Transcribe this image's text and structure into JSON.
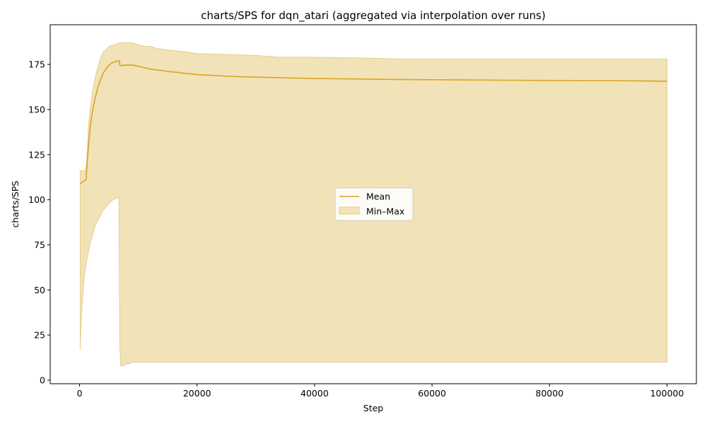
{
  "chart_data": {
    "type": "area",
    "title": "charts/SPS for dqn_atari (aggregated via interpolation over runs)",
    "xlabel": "Step",
    "ylabel": "charts/SPS",
    "xlim": [
      -5000,
      105000
    ],
    "ylim": [
      -2,
      197
    ],
    "xticks": [
      0,
      20000,
      40000,
      60000,
      80000,
      100000
    ],
    "yticks": [
      0,
      25,
      50,
      75,
      100,
      125,
      150,
      175
    ],
    "grid": false,
    "legend_position": "center",
    "colors": {
      "mean_line": "#DAA520",
      "band_fill": "#F1E2B8",
      "band_edge": "#E6CF8C"
    },
    "series": [
      {
        "name": "Mean",
        "kind": "line",
        "x": [
          100,
          600,
          1100,
          1400,
          1700,
          2000,
          2300,
          2700,
          3000,
          3500,
          4000,
          4500,
          5000,
          5500,
          6000,
          6500,
          6800,
          6850,
          7000,
          8000,
          9000,
          10000,
          11000,
          12000,
          13000,
          14000,
          15000,
          17000,
          18000,
          20000,
          22000,
          25000,
          28000,
          30000,
          33000,
          35000,
          38000,
          40000,
          45000,
          50000,
          55000,
          60000,
          65000,
          70000,
          75000,
          80000,
          85000,
          90000,
          95000,
          100000
        ],
        "y": [
          109,
          110,
          111,
          125,
          137,
          145,
          151,
          157,
          161,
          166,
          170,
          172.5,
          174.5,
          175.8,
          176.5,
          177,
          177,
          174.5,
          174.3,
          174.7,
          174.6,
          174,
          173.2,
          172.4,
          172,
          171.6,
          171.1,
          170.5,
          170,
          169.4,
          169,
          168.5,
          168.1,
          168,
          167.7,
          167.6,
          167.3,
          167.2,
          167,
          166.8,
          166.6,
          166.5,
          166.4,
          166.3,
          166.2,
          166.1,
          166,
          166,
          165.9,
          165.7
        ]
      },
      {
        "name": "Min–Max",
        "kind": "band",
        "x": [
          100,
          300,
          600,
          900,
          1200,
          1500,
          1800,
          2200,
          2600,
          3000,
          3500,
          4000,
          4500,
          5000,
          5500,
          6000,
          6500,
          6700,
          6850,
          7000,
          7500,
          8000,
          8500,
          9000,
          10000,
          11000,
          12000,
          13000,
          15000,
          18000,
          20000,
          25000,
          30000,
          34000,
          40000,
          49000,
          55000,
          60000,
          70000,
          80000,
          90000,
          100000
        ],
        "lower": [
          17,
          35,
          50,
          60,
          66,
          71,
          76,
          80,
          85,
          88,
          91,
          94,
          96,
          98,
          99.5,
          100.5,
          101,
          101.5,
          20,
          8,
          8,
          9,
          9,
          10,
          10,
          10,
          10,
          10,
          10,
          10,
          10,
          10,
          10,
          10,
          10,
          10,
          10,
          10,
          10,
          10,
          10,
          10
        ],
        "upper": [
          116,
          116,
          116,
          116,
          120,
          140,
          150,
          160,
          167,
          172,
          178,
          182,
          183,
          185,
          185.5,
          186,
          186.5,
          187,
          187,
          187,
          187,
          187,
          187,
          187,
          186,
          185,
          185,
          184,
          183,
          182,
          181,
          180.5,
          180,
          179,
          179,
          178.5,
          178,
          178,
          178,
          178,
          178,
          178
        ]
      }
    ]
  }
}
